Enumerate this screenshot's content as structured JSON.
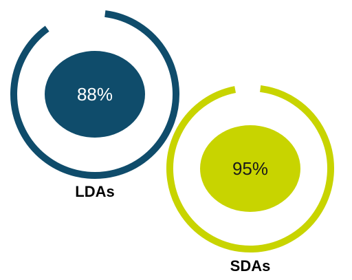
{
  "chart_data": {
    "type": "pie",
    "charts": [
      {
        "label": "LDAs",
        "value": 88,
        "value_label": "88%",
        "color": "#0f4c6b",
        "text_color": "#ffffff"
      },
      {
        "label": "SDAs",
        "value": 95,
        "value_label": "95%",
        "color": "#c8d400",
        "text_color": "#1a1a1a"
      }
    ]
  }
}
